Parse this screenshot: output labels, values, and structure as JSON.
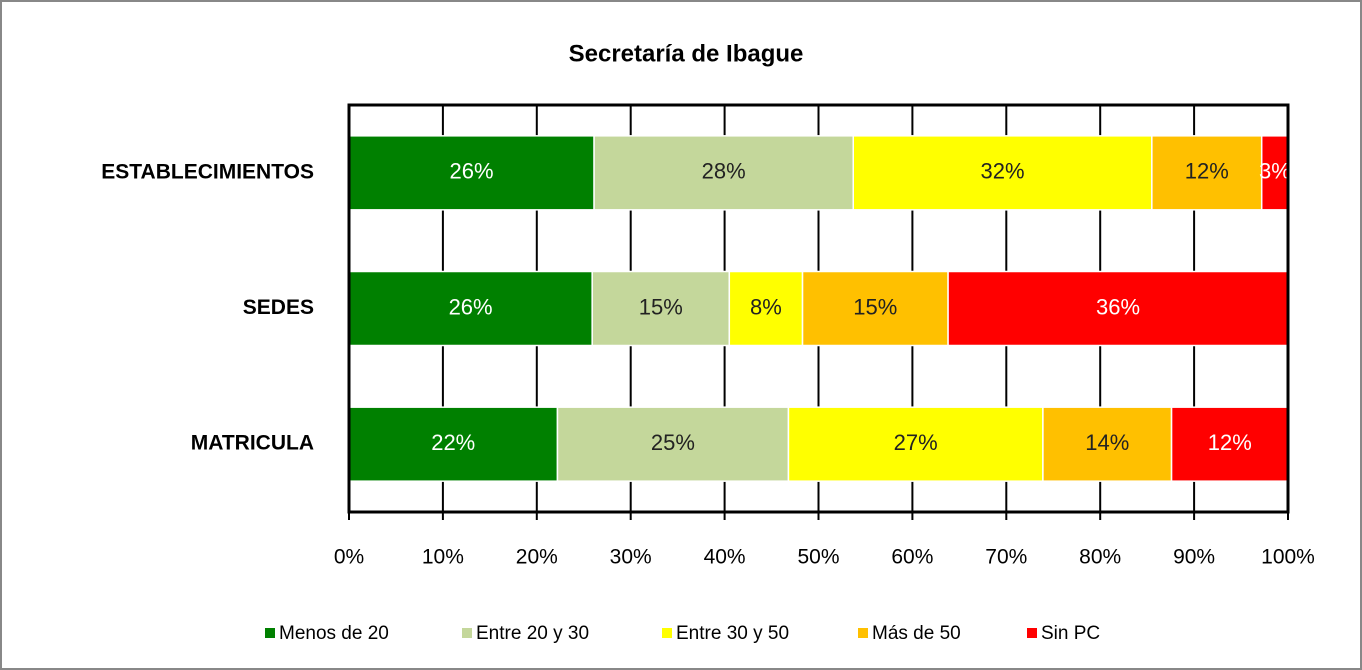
{
  "chart_data": {
    "type": "stacked-bar-horizontal",
    "title": "Secretaría de Ibague",
    "categories": [
      "ESTABLECIMIENTOS",
      "SEDES",
      "MATRICULA"
    ],
    "series": [
      {
        "name": "Menos de 20",
        "color": "#008000",
        "values": [
          26.1,
          25.9,
          22.2
        ],
        "value_labels": [
          "26%",
          "26%",
          "22%"
        ]
      },
      {
        "name": "Entre 20 y 30",
        "color": "#c4d79b",
        "values": [
          27.6,
          14.6,
          24.6
        ],
        "value_labels": [
          "28%",
          "15%",
          "25%"
        ]
      },
      {
        "name": "Entre 30 y 50",
        "color": "#ffff00",
        "values": [
          31.8,
          7.8,
          27.1
        ],
        "value_labels": [
          "32%",
          "8%",
          "27%"
        ]
      },
      {
        "name": "Más de 50",
        "color": "#ffc000",
        "values": [
          11.7,
          15.5,
          13.7
        ],
        "value_labels": [
          "12%",
          "15%",
          "14%"
        ]
      },
      {
        "name": "Sin PC",
        "color": "#ff0000",
        "values": [
          2.8,
          36.2,
          12.4
        ],
        "value_labels": [
          "3%",
          "36%",
          "12%"
        ]
      }
    ],
    "xlim": [
      0,
      100
    ],
    "xticks": [
      {
        "value": 0,
        "label": "0%"
      },
      {
        "value": 10,
        "label": "10%"
      },
      {
        "value": 20,
        "label": "20%"
      },
      {
        "value": 30,
        "label": "30%"
      },
      {
        "value": 40,
        "label": "40%"
      },
      {
        "value": 50,
        "label": "50%"
      },
      {
        "value": 60,
        "label": "60%"
      },
      {
        "value": 70,
        "label": "70%"
      },
      {
        "value": 80,
        "label": "80%"
      },
      {
        "value": 90,
        "label": "90%"
      },
      {
        "value": 100,
        "label": "100%"
      }
    ],
    "grid": true,
    "legend": "bottom"
  }
}
